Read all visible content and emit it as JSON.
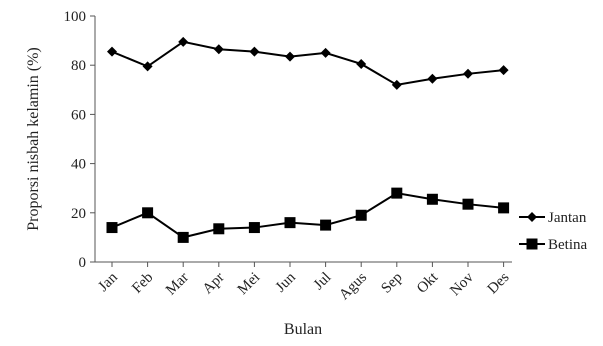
{
  "chart_data": {
    "type": "line",
    "title": "",
    "xlabel": "Bulan",
    "ylabel": "Proporsi nisbah kelamin (%)",
    "categories": [
      "Jan",
      "Feb",
      "Mar",
      "Apr",
      "Mei",
      "Jun",
      "Jul",
      "Agus",
      "Sep",
      "Okt",
      "Nov",
      "Des"
    ],
    "ylim": [
      0,
      100
    ],
    "yticks": [
      0,
      20,
      40,
      60,
      80,
      100
    ],
    "grid": false,
    "legend_position": "right",
    "series": [
      {
        "name": "Jantan",
        "marker": "diamond",
        "color": "#000000",
        "values": [
          85.5,
          79.5,
          89.5,
          86.5,
          85.5,
          83.5,
          85,
          80.5,
          72,
          74.5,
          76.5,
          78
        ]
      },
      {
        "name": "Betina",
        "marker": "square",
        "color": "#000000",
        "values": [
          14,
          20,
          10,
          13.5,
          14,
          16,
          15,
          19,
          28,
          25.5,
          23.5,
          22
        ]
      }
    ]
  }
}
